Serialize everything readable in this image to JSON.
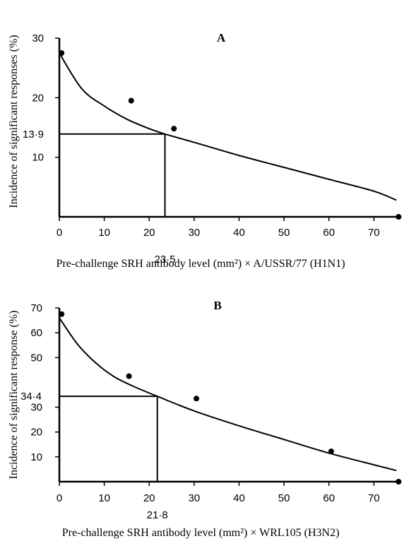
{
  "chart_data": [
    {
      "type": "scatter",
      "panel_label": "A",
      "ylabel": "Incidence of significant responses (%)",
      "xlabel": "Pre-challenge SRH antibody level (mm²) × A/USSR/77 (H1N1)",
      "xlim": [
        0,
        75
      ],
      "ylim": [
        0,
        30
      ],
      "xticks": [
        0,
        10,
        20,
        30,
        40,
        50,
        60,
        70
      ],
      "yticks": [
        10,
        20,
        30
      ],
      "points": [
        [
          0.5,
          27.5
        ],
        [
          16,
          19.5
        ],
        [
          25.5,
          14.8
        ],
        [
          75.5,
          0
        ]
      ],
      "curve": [
        [
          0,
          27.5
        ],
        [
          5,
          21.5
        ],
        [
          10,
          18.6
        ],
        [
          15,
          16.4
        ],
        [
          20,
          14.8
        ],
        [
          23.5,
          13.9
        ],
        [
          30,
          12.5
        ],
        [
          40,
          10.3
        ],
        [
          50,
          8.3
        ],
        [
          60,
          6.3
        ],
        [
          70,
          4.3
        ],
        [
          75,
          2.8
        ]
      ],
      "reference": {
        "x": 23.5,
        "y": 13.9,
        "x_label": "23·5",
        "y_label": "13·9"
      },
      "grid": false
    },
    {
      "type": "scatter",
      "panel_label": "B",
      "ylabel": "Incidence of significant response (%)",
      "xlabel": "Pre-challenge SRH antibody level (mm²) × WRL105 (H3N2)",
      "xlim": [
        0,
        75
      ],
      "ylim": [
        0,
        70
      ],
      "xticks": [
        0,
        10,
        20,
        30,
        40,
        50,
        60,
        70
      ],
      "yticks": [
        10,
        20,
        30,
        50,
        60,
        70
      ],
      "points": [
        [
          0.5,
          67.5
        ],
        [
          15.5,
          42.5
        ],
        [
          30.5,
          33.5
        ],
        [
          60.5,
          12.2
        ],
        [
          75.5,
          0
        ]
      ],
      "curve": [
        [
          0,
          66
        ],
        [
          4,
          55.5
        ],
        [
          8,
          48
        ],
        [
          12,
          42.5
        ],
        [
          16,
          38.8
        ],
        [
          21.8,
          34.4
        ],
        [
          30,
          28.5
        ],
        [
          40,
          22.5
        ],
        [
          50,
          17
        ],
        [
          60,
          11.5
        ],
        [
          70,
          6.8
        ],
        [
          75,
          4.5
        ]
      ],
      "reference": {
        "x": 21.8,
        "y": 34.4,
        "x_label": "21·8",
        "y_label": "34·4"
      },
      "grid": false
    }
  ]
}
